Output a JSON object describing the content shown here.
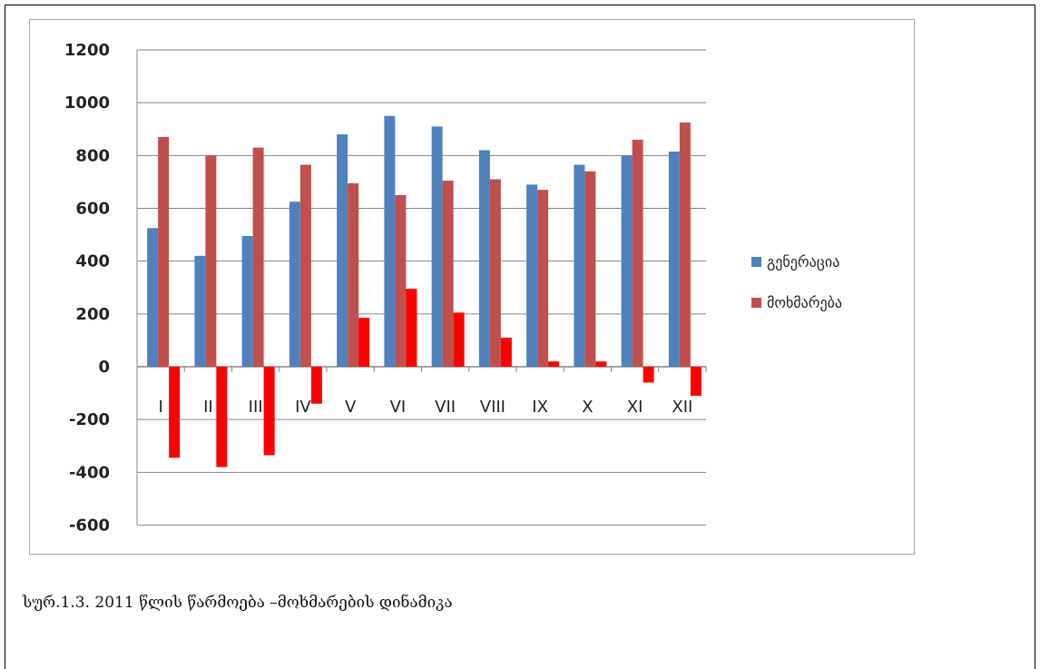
{
  "caption": "სურ.1.3. 2011 წლის წარმოება –მოხმარების დინამიკა",
  "chart_data": {
    "type": "bar",
    "categories": [
      "I",
      "II",
      "III",
      "IV",
      "V",
      "VI",
      "VII",
      "VIII",
      "IX",
      "X",
      "XI",
      "XII"
    ],
    "series": [
      {
        "name": "გენერაცია",
        "color": "#4f81bd",
        "values": [
          525,
          420,
          495,
          625,
          880,
          950,
          910,
          820,
          690,
          765,
          800,
          815
        ]
      },
      {
        "name": "მოხმარება",
        "color": "#c0504d",
        "values": [
          870,
          800,
          830,
          765,
          695,
          650,
          705,
          710,
          670,
          740,
          860,
          925
        ]
      },
      {
        "name": "",
        "color": "#ff0000",
        "values": [
          -345,
          -380,
          -335,
          -140,
          185,
          295,
          205,
          110,
          20,
          20,
          -60,
          -110
        ]
      }
    ],
    "yticks": [
      1200,
      1000,
      800,
      600,
      400,
      200,
      0,
      -200,
      -400,
      -600
    ],
    "ylim": [
      -600,
      1200
    ],
    "grid": true,
    "legend_position": "right",
    "title": "",
    "xlabel": "",
    "ylabel": ""
  }
}
